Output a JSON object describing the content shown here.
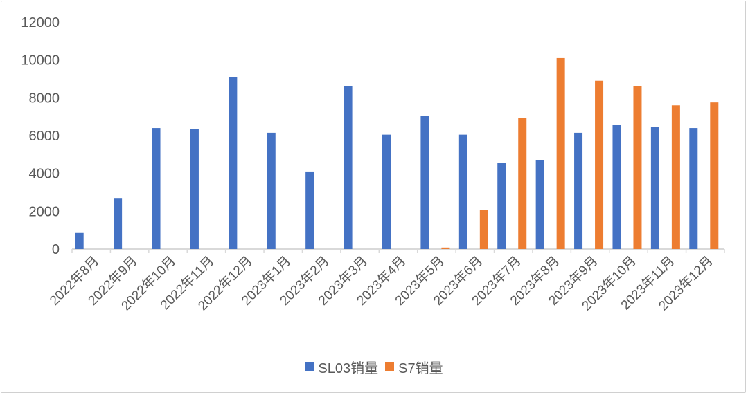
{
  "chart_data": {
    "type": "bar",
    "categories": [
      "2022年8月",
      "2022年9月",
      "2022年10月",
      "2022年11月",
      "2022年12月",
      "2023年1月",
      "2023年2月",
      "2023年3月",
      "2023年4月",
      "2023年5月",
      "2023年6月",
      "2023年7月",
      "2023年8月",
      "2023年9月",
      "2023年10月",
      "2023年11月",
      "2023年12月"
    ],
    "series": [
      {
        "name": "SL03销量",
        "color": "#4472C4",
        "values": [
          850,
          2700,
          6400,
          6350,
          9100,
          6150,
          4100,
          8600,
          6050,
          7050,
          6050,
          4550,
          4700,
          6150,
          6550,
          6450,
          6400
        ]
      },
      {
        "name": "S7销量",
        "color": "#ED7D31",
        "values": [
          null,
          null,
          null,
          null,
          null,
          null,
          null,
          null,
          null,
          80,
          2050,
          6950,
          10100,
          8900,
          8600,
          7600,
          7750
        ]
      }
    ],
    "yticks": [
      0,
      2000,
      4000,
      6000,
      8000,
      10000,
      12000
    ],
    "ylim": [
      0,
      12000
    ],
    "title": "",
    "xlabel": "",
    "ylabel": "",
    "grid": false,
    "legend_position": "bottom"
  }
}
